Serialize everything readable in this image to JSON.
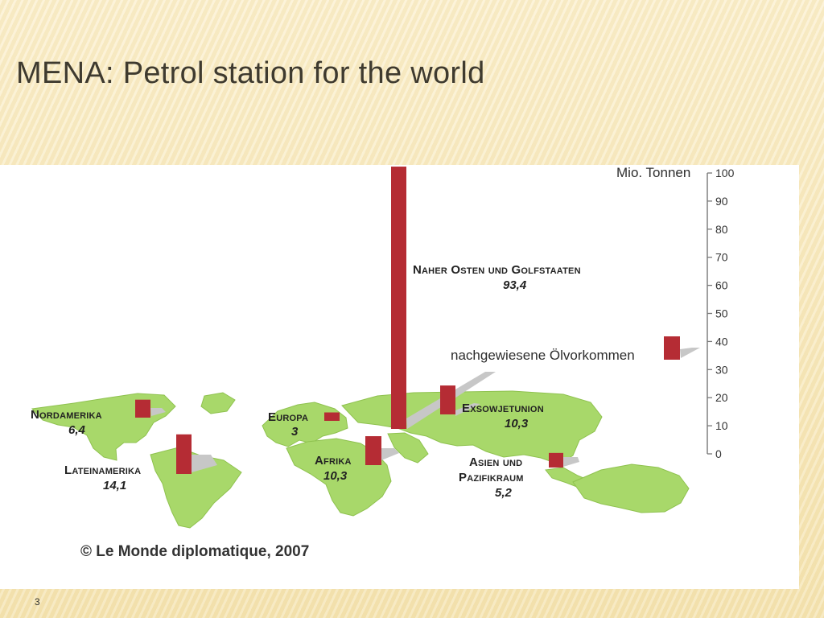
{
  "slide": {
    "title": "MENA: Petrol station for the world",
    "page_number": "3"
  },
  "chart_data": {
    "type": "bar",
    "title": "",
    "ylabel": "Mio. Tonnen",
    "ylim": [
      0,
      100
    ],
    "yticks": [
      0,
      10,
      20,
      30,
      40,
      50,
      60,
      70,
      80,
      90,
      100
    ],
    "legend": {
      "label": "nachgewiesene Ölvorkommen",
      "color": "#b52c34",
      "placement": "right"
    },
    "categories": [
      "Nordamerika",
      "Lateinamerika",
      "Europa",
      "Afrika",
      "Naher Osten und Golfstaaten",
      "Exsowjetunion",
      "Asien und Pazifikraum"
    ],
    "values": [
      6.4,
      14.1,
      3,
      10.3,
      93.4,
      10.3,
      5.2
    ],
    "value_labels": [
      "6,4",
      "14,1",
      "3",
      "10,3",
      "93,4",
      "10,3",
      "5,2"
    ],
    "regions": [
      {
        "name_line1": "Nordamerika",
        "name_line2": "",
        "value_label": "6,4"
      },
      {
        "name_line1": "Lateinamerika",
        "name_line2": "",
        "value_label": "14,1"
      },
      {
        "name_line1": "Europa",
        "name_line2": "",
        "value_label": "3"
      },
      {
        "name_line1": "Afrika",
        "name_line2": "",
        "value_label": "10,3"
      },
      {
        "name_line1": "Naher Osten und Golfstaaten",
        "name_line2": "",
        "value_label": "93,4"
      },
      {
        "name_line1": "Exsowjetunion",
        "name_line2": "",
        "value_label": "10,3"
      },
      {
        "name_line1": "Asien und",
        "name_line2": "Pazifikraum",
        "value_label": "5,2"
      }
    ],
    "credit": "© Le Monde diplomatique, 2007",
    "colors": {
      "bar": "#b52c34",
      "map": "#a8d86a",
      "shadow": "#c7c7c7"
    }
  }
}
